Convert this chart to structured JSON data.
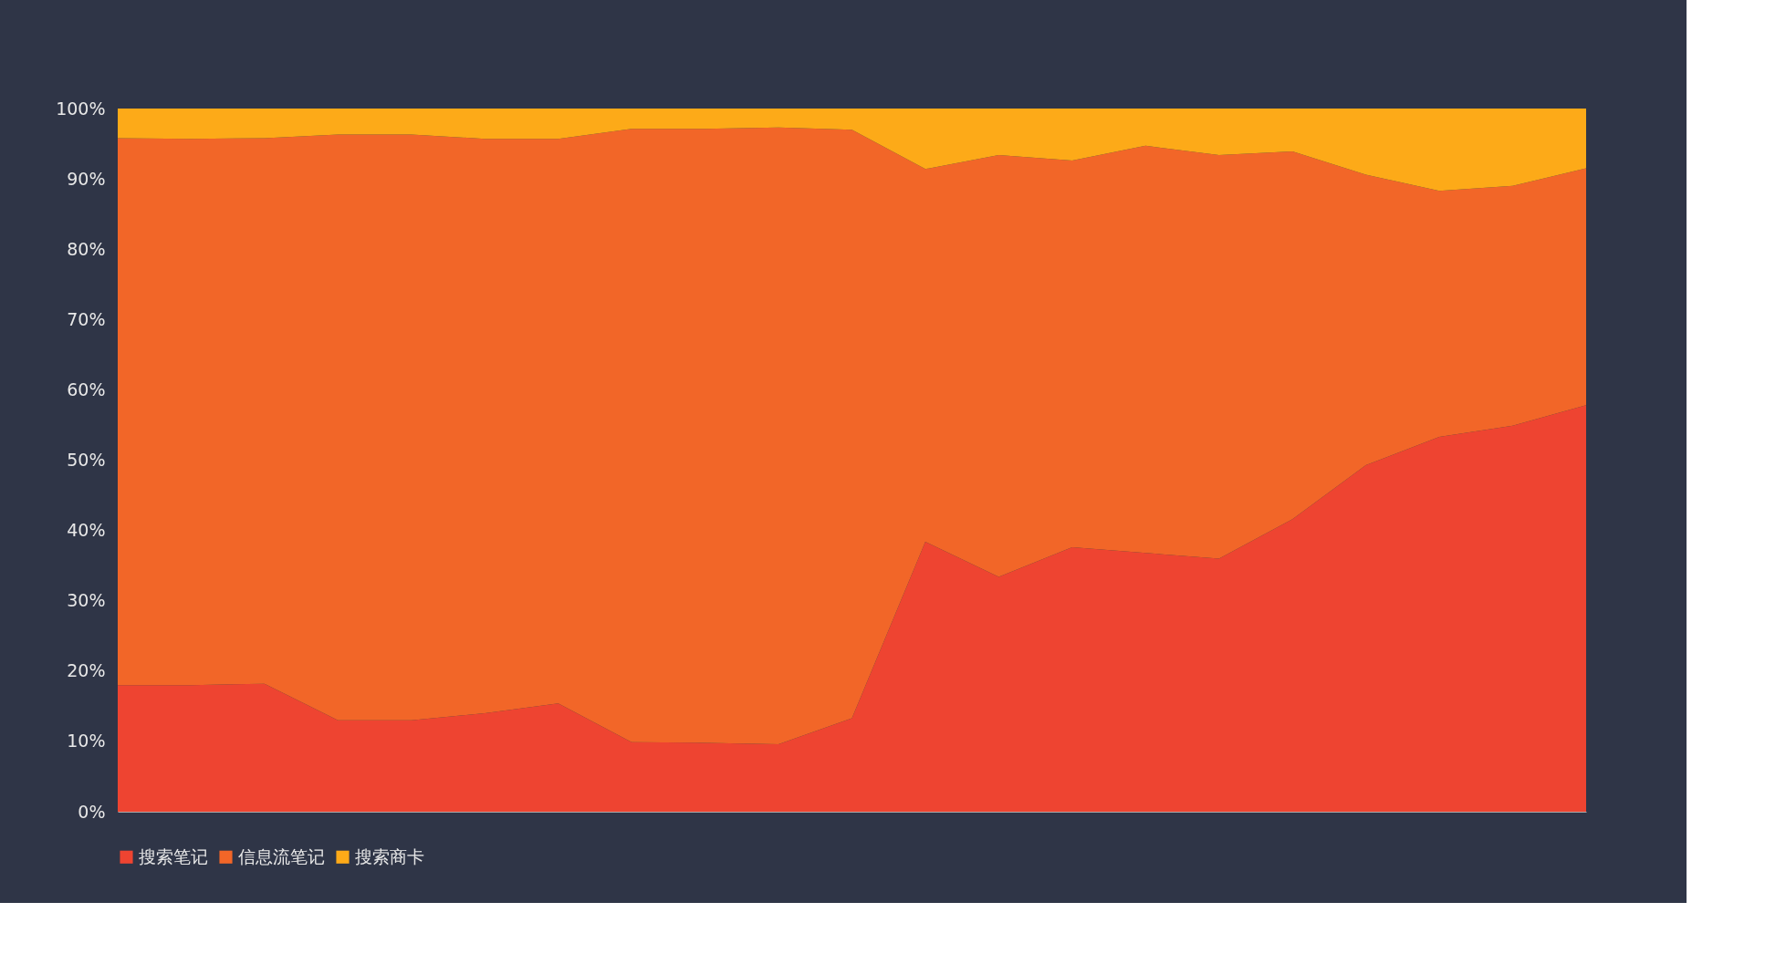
{
  "chart_data": {
    "type": "area",
    "stacked": true,
    "categories": [
      null,
      null,
      null,
      null,
      null,
      null,
      null,
      null,
      null,
      null,
      null,
      null,
      null,
      null,
      null,
      null,
      null,
      null,
      null,
      null,
      null
    ],
    "series": [
      {
        "name": "搜索笔记",
        "color": "#ee4431",
        "values": [
          18,
          18,
          18.2,
          13,
          13,
          14,
          15.4,
          9.9,
          9.8,
          9.6,
          13.3,
          38.4,
          33.4,
          37.6,
          36.8,
          36,
          41.6,
          49.3,
          53.3,
          54.9,
          57.8
        ]
      },
      {
        "name": "信息流笔记",
        "color": "#f26628",
        "values": [
          77.8,
          77.7,
          77.6,
          83.3,
          83.3,
          81.7,
          80.3,
          87.2,
          87.3,
          87.7,
          83.7,
          53,
          60,
          55,
          57.9,
          57.4,
          52.3,
          41.3,
          35,
          34.1,
          33.7
        ]
      },
      {
        "name": "搜索商卡",
        "color": "#fdaa18",
        "values": [
          4.2,
          4.3,
          4.2,
          3.7,
          3.7,
          4.3,
          4.3,
          2.9,
          2.9,
          2.7,
          3,
          8.6,
          6.6,
          7.4,
          5.3,
          6.6,
          6.1,
          9.4,
          11.7,
          11,
          8.5
        ]
      }
    ],
    "ylim": [
      0,
      100
    ],
    "yticks": [
      {
        "value": 0,
        "label": "0%"
      },
      {
        "value": 10,
        "label": "10%"
      },
      {
        "value": 20,
        "label": "20%"
      },
      {
        "value": 30,
        "label": "30%"
      },
      {
        "value": 40,
        "label": "40%"
      },
      {
        "value": 50,
        "label": "50%"
      },
      {
        "value": 60,
        "label": "60%"
      },
      {
        "value": 70,
        "label": "70%"
      },
      {
        "value": 80,
        "label": "80%"
      },
      {
        "value": 90,
        "label": "90%"
      },
      {
        "value": 100,
        "label": "100%"
      }
    ],
    "tick_labels": "y",
    "grid": false,
    "legend": "bottom"
  }
}
